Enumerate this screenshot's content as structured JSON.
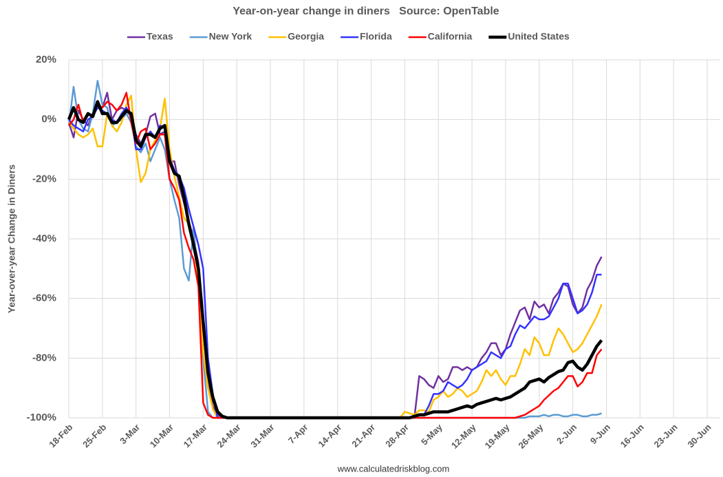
{
  "chart_data": {
    "type": "line",
    "title": "Year-on-year change in diners   Source: OpenTable",
    "ylabel": "Year-over-year Change in Diners",
    "source": "www.calculatedriskblog.com",
    "ylim": [
      -100,
      20
    ],
    "yticks": [
      {
        "value": 20,
        "label": "20%"
      },
      {
        "value": 0,
        "label": "0%"
      },
      {
        "value": -20,
        "label": "-20%"
      },
      {
        "value": -40,
        "label": "-40%"
      },
      {
        "value": -60,
        "label": "-60%"
      },
      {
        "value": -80,
        "label": "-80%"
      },
      {
        "value": -100,
        "label": "-100%"
      }
    ],
    "grid": true,
    "legend": "top",
    "categories": [
      "18-Feb",
      null,
      null,
      null,
      null,
      null,
      null,
      "25-Feb",
      null,
      null,
      null,
      null,
      null,
      null,
      "3-Mar",
      null,
      null,
      null,
      null,
      null,
      null,
      "10-Mar",
      null,
      null,
      null,
      null,
      null,
      null,
      "17-Mar",
      null,
      null,
      null,
      null,
      null,
      null,
      "24-Mar",
      null,
      null,
      null,
      null,
      null,
      null,
      "31-Mar",
      null,
      null,
      null,
      null,
      null,
      null,
      "7-Apr",
      null,
      null,
      null,
      null,
      null,
      null,
      "14-Apr",
      null,
      null,
      null,
      null,
      null,
      null,
      "21-Apr",
      null,
      null,
      null,
      null,
      null,
      null,
      "28-Apr",
      null,
      null,
      null,
      null,
      null,
      null,
      "5-May",
      null,
      null,
      null,
      null,
      null,
      null,
      "12-May",
      null,
      null,
      null,
      null,
      null,
      null,
      "19-May",
      null,
      null,
      null,
      null,
      null,
      null,
      "26-May",
      null,
      null,
      null,
      null,
      null,
      null,
      "2-Jun",
      null,
      null,
      null,
      null,
      null,
      null,
      "9-Jun",
      null,
      null,
      null,
      null,
      null,
      null,
      "16-Jun",
      null,
      null,
      null,
      null,
      null,
      null,
      "23-Jun",
      null,
      null,
      null,
      null,
      null,
      null,
      "30-Jun"
    ],
    "series": [
      {
        "name": "Texas",
        "color": "#7030a0",
        "linewidth": 2.5,
        "values": [
          -1,
          -6,
          3,
          0,
          -2,
          2,
          5,
          4,
          9,
          0,
          3,
          4,
          3,
          1,
          -5,
          -8,
          -5,
          1,
          2,
          -5,
          -4,
          -14,
          -14,
          -22,
          -28,
          -34,
          -40,
          -48,
          -70,
          -88,
          -96,
          -99,
          -100,
          -100,
          -100,
          -100,
          -100,
          -100,
          -100,
          -100,
          -100,
          -100,
          -100,
          -100,
          -100,
          -100,
          -100,
          -100,
          -100,
          -100,
          -100,
          -100,
          -100,
          -100,
          -100,
          -100,
          -100,
          -100,
          -100,
          -100,
          -100,
          -100,
          -100,
          -100,
          -100,
          -100,
          -100,
          -100,
          -100,
          -100,
          -100,
          -100,
          -100,
          -86,
          -87,
          -89,
          -90,
          -86,
          -88,
          -87,
          -83,
          -83,
          -84,
          -83,
          -84,
          -83,
          -80,
          -78,
          -75,
          -75,
          -79,
          -77,
          -72,
          -68,
          -64,
          -63,
          -67,
          -61,
          -63,
          -62,
          -65,
          -60,
          -58,
          -55,
          -56,
          -62,
          -65,
          -63,
          -57,
          -54,
          -49,
          -46,
          null,
          null,
          null,
          null,
          null,
          null,
          null,
          null,
          null,
          null,
          null,
          null,
          null,
          null,
          null,
          null,
          null,
          null,
          null,
          null,
          null,
          null
        ]
      },
      {
        "name": "New York",
        "color": "#5b9bd5",
        "linewidth": 2.5,
        "values": [
          -2,
          11,
          0,
          -3,
          -4,
          2,
          13,
          5,
          4,
          -2,
          -1,
          0,
          2,
          -1,
          -9,
          -11,
          -8,
          -14,
          -10,
          -6,
          -10,
          -20,
          -27,
          -33,
          -50,
          -54,
          -36,
          -55,
          -80,
          -98,
          -100,
          -100,
          -100,
          -100,
          -100,
          -100,
          -100,
          -100,
          -100,
          -100,
          -100,
          -100,
          -100,
          -100,
          -100,
          -100,
          -100,
          -100,
          -100,
          -100,
          -100,
          -100,
          -100,
          -100,
          -100,
          -100,
          -100,
          -100,
          -100,
          -100,
          -100,
          -100,
          -100,
          -100,
          -100,
          -100,
          -100,
          -100,
          -100,
          -100,
          -100,
          -100,
          -100,
          -100,
          -100,
          -100,
          -100,
          -100,
          -100,
          -100,
          -100,
          -100,
          -100,
          -100,
          -100,
          -100,
          -100,
          -100,
          -100,
          -100,
          -100,
          -100,
          -100,
          -100,
          -100,
          -100,
          -99.5,
          -99.5,
          -99.5,
          -99,
          -99.5,
          -99,
          -99,
          -99.5,
          -99.5,
          -99,
          -99,
          -99.5,
          -99.5,
          -99,
          -99,
          -98.5,
          null,
          null,
          null,
          null,
          null,
          null,
          null,
          null,
          null,
          null,
          null,
          null,
          null,
          null,
          null,
          null,
          null,
          null,
          null,
          null,
          null,
          null
        ]
      },
      {
        "name": "Georgia",
        "color": "#ffc000",
        "linewidth": 2.5,
        "values": [
          -1,
          -3,
          -5,
          -6,
          -5,
          -3,
          -9,
          -9,
          2,
          -2,
          -4,
          -1,
          5,
          8,
          -10,
          -21,
          -18,
          -10,
          -7,
          -3,
          7,
          -10,
          -19,
          -26,
          -33,
          -35,
          -42,
          -53,
          -78,
          -90,
          -97,
          -100,
          -100,
          -100,
          -100,
          -100,
          -100,
          -100,
          -100,
          -100,
          -100,
          -100,
          -100,
          -100,
          -100,
          -100,
          -100,
          -100,
          -100,
          -100,
          -100,
          -100,
          -100,
          -100,
          -100,
          -100,
          -100,
          -100,
          -100,
          -100,
          -100,
          -100,
          -100,
          -100,
          -100,
          -100,
          -100,
          -100,
          -100,
          -100,
          -98,
          -98.5,
          -99,
          -97.5,
          -97.5,
          -98,
          -94,
          -93,
          -91,
          -93,
          -92,
          -90,
          -91,
          -93,
          -92,
          -91,
          -88,
          -84,
          -86,
          -84,
          -87,
          -89,
          -86,
          -86,
          -82,
          -77,
          -79,
          -73,
          -75,
          -79,
          -79,
          -74,
          -70,
          -72,
          -75,
          -78,
          -77,
          -75,
          -72,
          -69,
          -66,
          -62,
          null,
          null,
          null,
          null,
          null,
          null,
          null,
          null,
          null,
          null,
          null,
          null,
          null,
          null,
          null,
          null,
          null,
          null,
          null,
          null,
          null,
          null
        ]
      },
      {
        "name": "Florida",
        "color": "#3333ff",
        "linewidth": 2.5,
        "values": [
          0,
          -2,
          -3,
          -4,
          0,
          1,
          4,
          3,
          2,
          0,
          -1,
          2,
          4,
          1,
          -10,
          -10,
          -6,
          -4,
          -6,
          -2,
          -3,
          -13,
          -17,
          -19,
          -23,
          -30,
          -36,
          -42,
          -50,
          -80,
          -92,
          -100,
          -100,
          -100,
          -100,
          -100,
          -100,
          -100,
          -100,
          -100,
          -100,
          -100,
          -100,
          -100,
          -100,
          -100,
          -100,
          -100,
          -100,
          -100,
          -100,
          -100,
          -100,
          -100,
          -100,
          -100,
          -100,
          -100,
          -100,
          -100,
          -100,
          -100,
          -100,
          -100,
          -100,
          -100,
          -100,
          -100,
          -100,
          -100,
          -100,
          -100,
          -100,
          -99,
          -99,
          -96,
          -92,
          -92,
          -91,
          -88,
          -89,
          -90,
          -89,
          -87,
          -84,
          -83,
          -82,
          -81,
          -78,
          -79,
          -80,
          -77,
          -76,
          -72,
          -69,
          -70,
          -68,
          -66,
          -67,
          -67,
          -66,
          -63,
          -60,
          -55,
          -55,
          -60,
          -65,
          -64,
          -62,
          -58,
          -52,
          -52,
          null,
          null,
          null,
          null,
          null,
          null,
          null,
          null,
          null,
          null,
          null,
          null,
          null,
          null,
          null,
          null,
          null,
          null,
          null,
          null,
          null,
          null
        ]
      },
      {
        "name": "California",
        "color": "#ff0000",
        "linewidth": 2.5,
        "values": [
          -2,
          0,
          5,
          -1,
          2,
          1,
          5,
          4,
          6,
          5,
          3,
          5,
          9,
          -1,
          -8,
          -4,
          -3,
          -10,
          -8,
          -5,
          -5,
          -20,
          -23,
          -27,
          -38,
          -43,
          -47,
          -56,
          -95,
          -99,
          -100,
          -100,
          -100,
          -100,
          -100,
          -100,
          -100,
          -100,
          -100,
          -100,
          -100,
          -100,
          -100,
          -100,
          -100,
          -100,
          -100,
          -100,
          -100,
          -100,
          -100,
          -100,
          -100,
          -100,
          -100,
          -100,
          -100,
          -100,
          -100,
          -100,
          -100,
          -100,
          -100,
          -100,
          -100,
          -100,
          -100,
          -100,
          -100,
          -100,
          -100,
          -100,
          -100,
          -100,
          -100,
          -100,
          -100,
          -100,
          -100,
          -100,
          -100,
          -100,
          -100,
          -100,
          -100,
          -100,
          -100,
          -100,
          -100,
          -100,
          -100,
          -100,
          -100,
          -100,
          -99.5,
          -99,
          -98,
          -97,
          -96,
          -94,
          -92.5,
          -91,
          -90,
          -88,
          -86,
          -86,
          -89.5,
          -88,
          -85,
          -85,
          -79,
          -77,
          null,
          null,
          null,
          null,
          null,
          null,
          null,
          null,
          null,
          null,
          null,
          null,
          null,
          null,
          null,
          null,
          null,
          null,
          null,
          null,
          null,
          null
        ]
      },
      {
        "name": "United States",
        "color": "#000000",
        "linewidth": 4.5,
        "values": [
          0,
          4,
          0,
          -1,
          2,
          1,
          6,
          2,
          2,
          -1,
          -1,
          1,
          3,
          2,
          -7,
          -9,
          -5,
          -5,
          -6,
          -3,
          -2,
          -14,
          -18,
          -19,
          -26,
          -35,
          -42,
          -50,
          -68,
          -85,
          -93,
          -98,
          -99.5,
          -100,
          -100,
          -100,
          -100,
          -100,
          -100,
          -100,
          -100,
          -100,
          -100,
          -100,
          -100,
          -100,
          -100,
          -100,
          -100,
          -100,
          -100,
          -100,
          -100,
          -100,
          -100,
          -100,
          -100,
          -100,
          -100,
          -100,
          -100,
          -100,
          -100,
          -100,
          -100,
          -100,
          -100,
          -100,
          -100,
          -100,
          -100,
          -100,
          -99.5,
          -99,
          -99,
          -98.5,
          -98,
          -98,
          -98,
          -98,
          -97.5,
          -97,
          -96.5,
          -96,
          -96.5,
          -95.5,
          -95,
          -94.5,
          -94,
          -93.5,
          -94,
          -93.5,
          -93,
          -92,
          -91,
          -90,
          -88,
          -87.5,
          -87,
          -88,
          -86.5,
          -85.5,
          -84.5,
          -84,
          -81.5,
          -81,
          -83,
          -84,
          -82,
          -79,
          -76,
          -74,
          null,
          null,
          null,
          null,
          null,
          null,
          null,
          null,
          null,
          null,
          null,
          null,
          null,
          null,
          null,
          null,
          null,
          null,
          null,
          null,
          null,
          null
        ]
      }
    ]
  }
}
